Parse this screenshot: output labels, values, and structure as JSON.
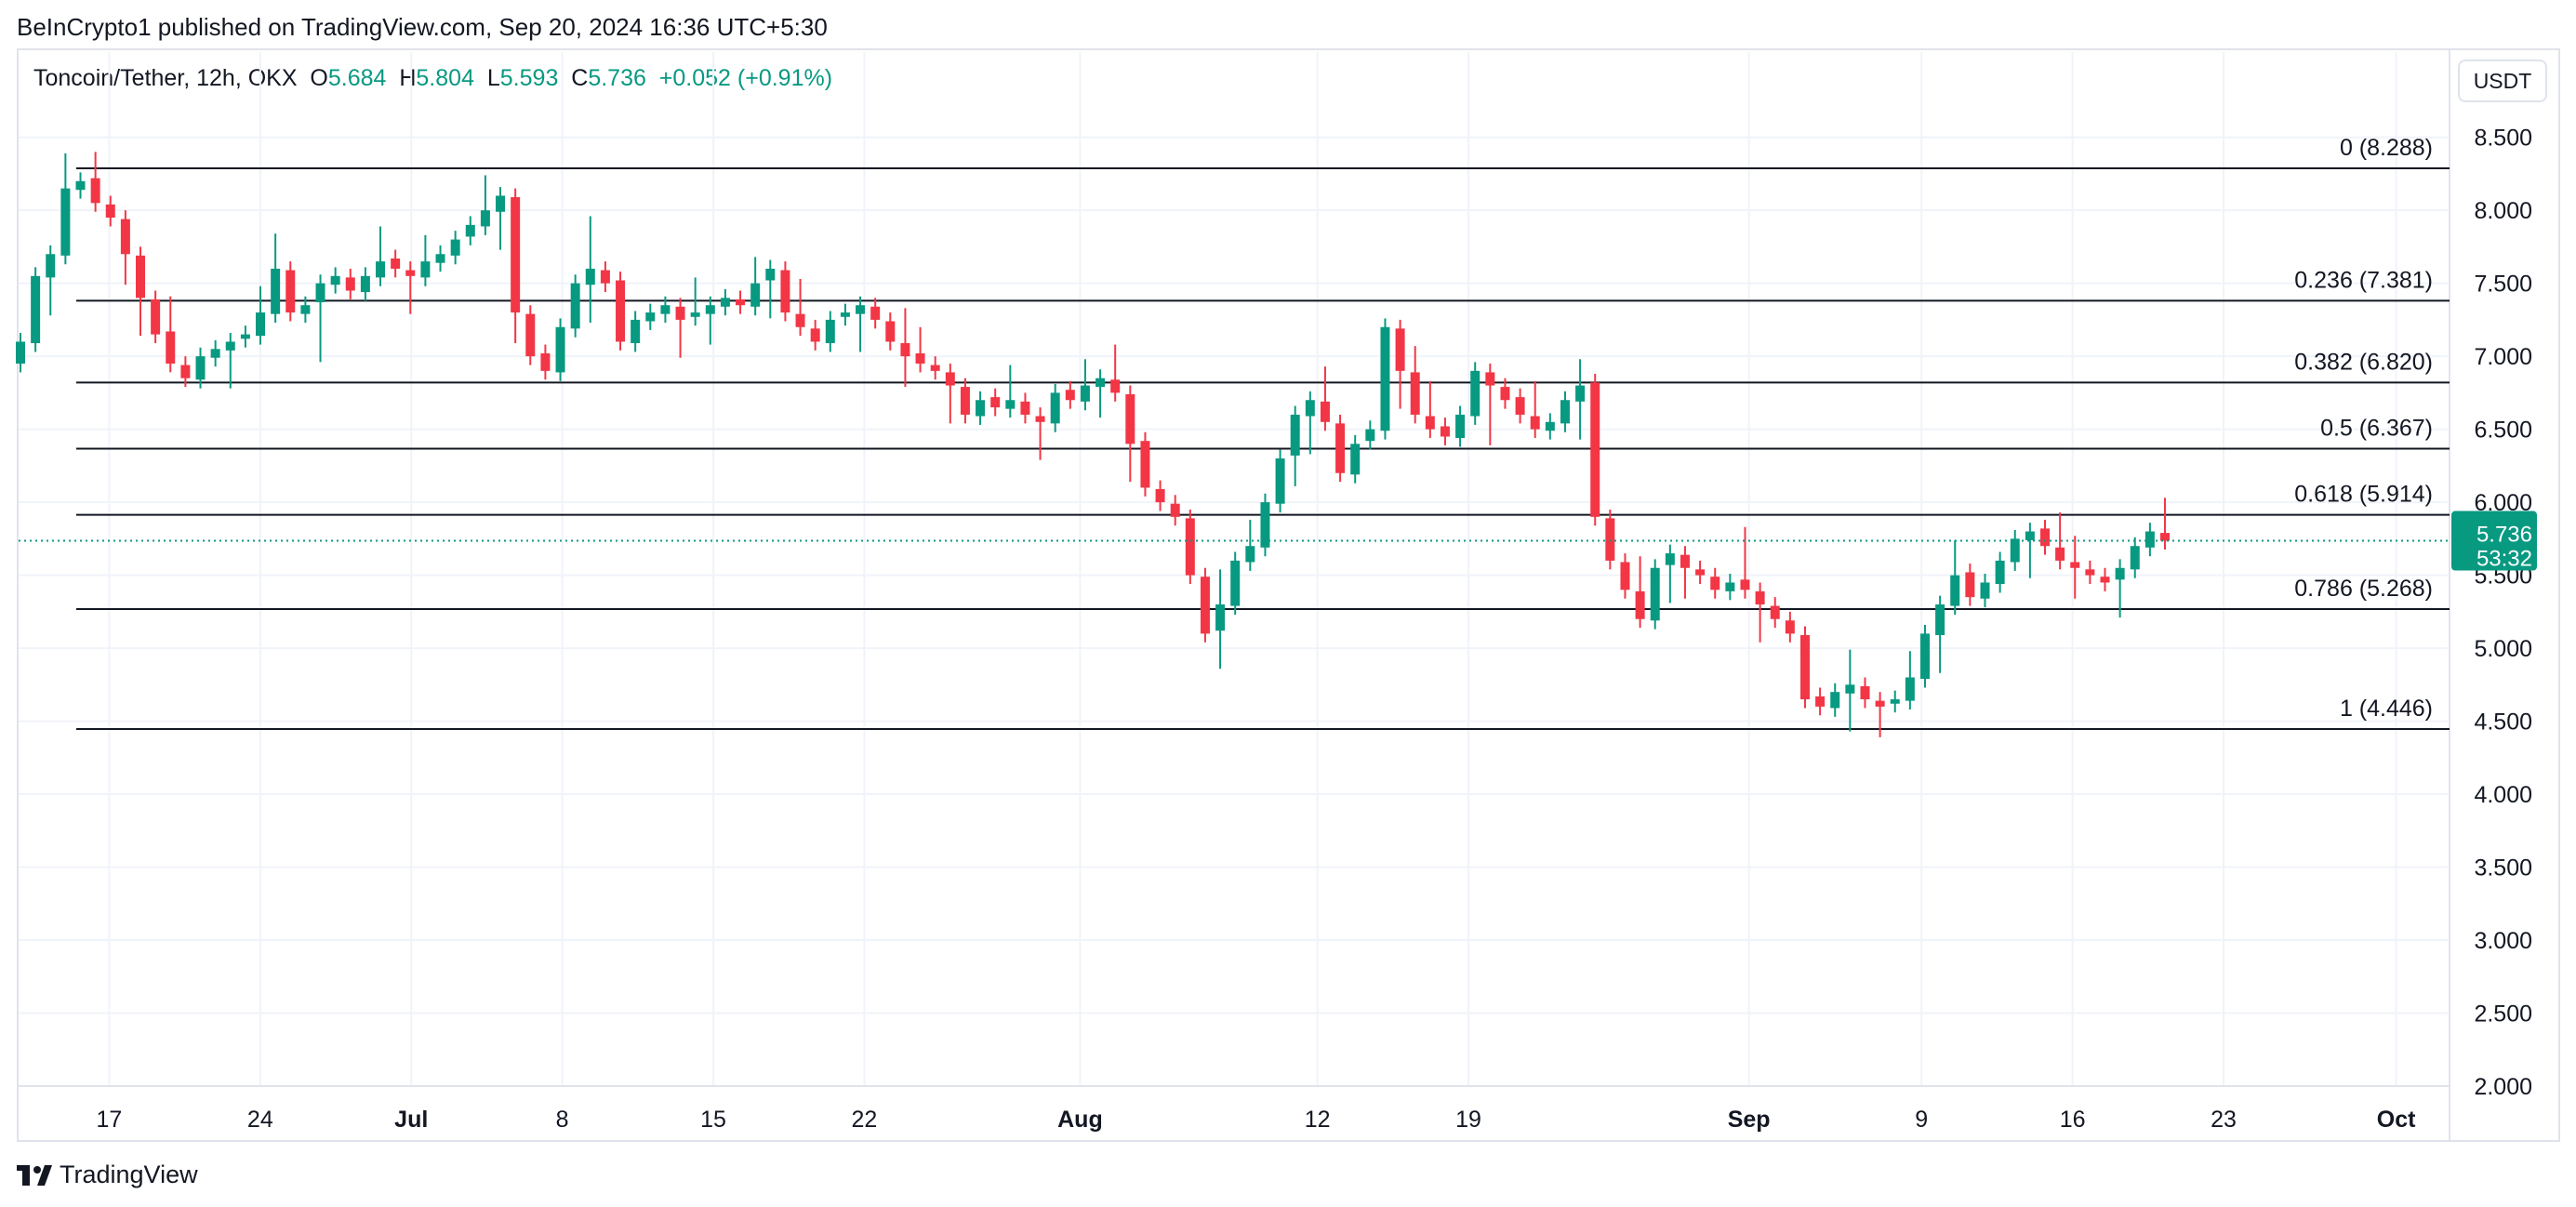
{
  "publisher_line": "BeInCrypto1 published on TradingView.com, Sep 20, 2024 16:36 UTC+5:30",
  "symbol": "Toncoin/Tether, 12h, OKX",
  "ohlc": {
    "o_label": "O",
    "o": "5.684",
    "h_label": "H",
    "h": "5.804",
    "l_label": "L",
    "l": "5.593",
    "c_label": "C",
    "c": "5.736",
    "change": "+0.052 (+0.91%)"
  },
  "currency_button": "USDT",
  "brand": "TradingView",
  "price_tag": {
    "price": "5.736",
    "countdown": "53:32"
  },
  "colors": {
    "up": "#089981",
    "down": "#f23645",
    "fib_line": "#131722",
    "grid": "#f0f3fa",
    "axis_text": "#131722"
  },
  "chart_data": {
    "type": "candlestick",
    "ylim": [
      2.0,
      8.6
    ],
    "y_ticks": [
      "8.500",
      "8.000",
      "7.500",
      "7.000",
      "6.500",
      "6.000",
      "5.500",
      "5.000",
      "4.500",
      "4.000",
      "3.500",
      "3.000",
      "2.500",
      "2.000"
    ],
    "x_ticks": [
      {
        "label": "17",
        "day": 17,
        "bold": false
      },
      {
        "label": "24",
        "day": 24,
        "bold": false
      },
      {
        "label": "Jul",
        "day": 31,
        "bold": true
      },
      {
        "label": "8",
        "day": 38,
        "bold": false
      },
      {
        "label": "15",
        "day": 45,
        "bold": false
      },
      {
        "label": "22",
        "day": 52,
        "bold": false
      },
      {
        "label": "Aug",
        "day": 62,
        "bold": true
      },
      {
        "label": "12",
        "day": 73,
        "bold": false
      },
      {
        "label": "19",
        "day": 80,
        "bold": false
      },
      {
        "label": "Sep",
        "day": 93,
        "bold": true
      },
      {
        "label": "9",
        "day": 101,
        "bold": false
      },
      {
        "label": "16",
        "day": 108,
        "bold": false
      },
      {
        "label": "23",
        "day": 115,
        "bold": false
      },
      {
        "label": "Oct",
        "day": 123,
        "bold": true
      }
    ],
    "fib_levels": [
      {
        "label": "0 (8.288)",
        "value": 8.288
      },
      {
        "label": "0.236 (7.381)",
        "value": 7.381
      },
      {
        "label": "0.382 (6.820)",
        "value": 6.82
      },
      {
        "label": "0.5 (6.367)",
        "value": 6.367
      },
      {
        "label": "0.618 (5.914)",
        "value": 5.914
      },
      {
        "label": "0.786 (5.268)",
        "value": 5.268
      },
      {
        "label": "1 (4.446)",
        "value": 4.446
      }
    ],
    "last_price": 5.736,
    "closes": [
      7.1,
      7.55,
      7.7,
      8.15,
      8.2,
      8.05,
      7.95,
      7.7,
      7.4,
      7.15,
      6.95,
      6.85,
      7.0,
      7.05,
      7.1,
      7.15,
      7.3,
      7.6,
      7.3,
      7.35,
      7.5,
      7.55,
      7.45,
      7.55,
      7.65,
      7.6,
      7.55,
      7.65,
      7.7,
      7.8,
      7.9,
      8.0,
      8.1,
      7.3,
      7.0,
      6.9,
      7.2,
      7.5,
      7.6,
      7.5,
      7.1,
      7.25,
      7.3,
      7.35,
      7.25,
      7.3,
      7.35,
      7.4,
      7.35,
      7.5,
      7.6,
      7.3,
      7.2,
      7.1,
      7.25,
      7.3,
      7.35,
      7.25,
      7.1,
      7.0,
      6.95,
      6.9,
      6.8,
      6.6,
      6.7,
      6.65,
      6.7,
      6.6,
      6.55,
      6.75,
      6.7,
      6.8,
      6.85,
      6.75,
      6.4,
      6.1,
      6.0,
      5.9,
      5.5,
      5.1,
      5.3,
      5.6,
      5.7,
      6.0,
      6.3,
      6.6,
      6.7,
      6.55,
      6.2,
      6.4,
      6.5,
      7.2,
      6.9,
      6.6,
      6.5,
      6.45,
      6.6,
      6.9,
      6.8,
      6.7,
      6.6,
      6.5,
      6.55,
      6.7,
      6.8,
      5.9,
      5.6,
      5.4,
      5.2,
      5.55,
      5.65,
      5.55,
      5.5,
      5.4,
      5.45,
      5.4,
      5.3,
      5.2,
      5.1,
      4.65,
      4.6,
      4.7,
      4.75,
      4.65,
      4.6,
      4.65,
      4.8,
      5.1,
      5.3,
      5.5,
      5.35,
      5.45,
      5.6,
      5.75,
      5.8,
      5.7,
      5.6,
      5.55,
      5.5,
      5.45,
      5.55,
      5.7,
      5.8,
      5.736
    ]
  }
}
